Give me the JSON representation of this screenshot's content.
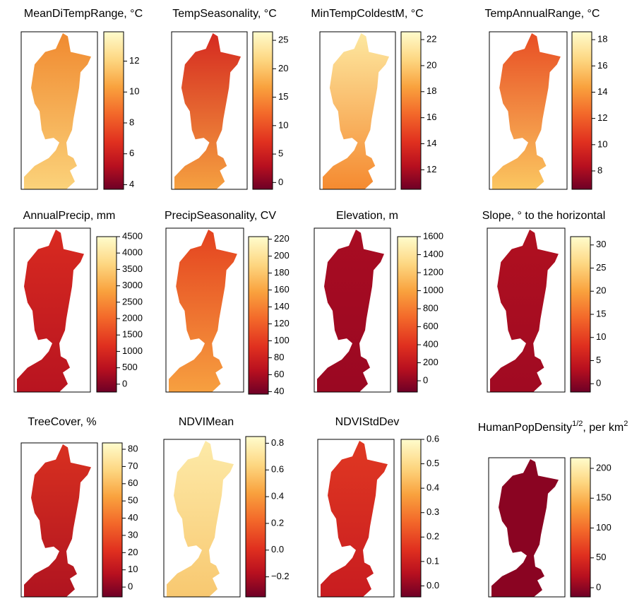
{
  "chart_data": [
    {
      "type": "raster-map",
      "title": "MeanDiTempRange, °C",
      "ylim": [
        3.7,
        13.9
      ],
      "yticks": [
        4,
        6,
        8,
        10,
        12
      ],
      "colors": [
        "#f08a30",
        "#fbd27a"
      ]
    },
    {
      "type": "raster-map",
      "title": "TempSeasonality, °C",
      "ylim": [
        -1.2,
        26.5
      ],
      "yticks": [
        0,
        5,
        10,
        15,
        20,
        25
      ],
      "colors": [
        "#d52a20",
        "#f5a040"
      ]
    },
    {
      "type": "raster-map",
      "title": "MinTempColdestM, °C",
      "ylim": [
        10.5,
        22.6
      ],
      "yticks": [
        12,
        14,
        16,
        18,
        20,
        22
      ],
      "colors": [
        "#fde8a0",
        "#f58a30"
      ]
    },
    {
      "type": "raster-map",
      "title": "TempAnnualRange, °C",
      "ylim": [
        6.6,
        18.6
      ],
      "yticks": [
        8,
        10,
        12,
        14,
        16,
        18
      ],
      "colors": [
        "#e84e24",
        "#fbc660"
      ]
    },
    {
      "type": "raster-map",
      "title": "AnnualPrecip, mm",
      "ylim": [
        -240,
        4500
      ],
      "yticks": [
        0,
        500,
        1000,
        1500,
        2000,
        2500,
        3000,
        3500,
        4000,
        4500
      ],
      "colors": [
        "#d82a20",
        "#b81420"
      ]
    },
    {
      "type": "raster-map",
      "title": "PrecipSeasonality, CV",
      "ylim": [
        37,
        223
      ],
      "yticks": [
        40,
        60,
        80,
        100,
        120,
        140,
        160,
        180,
        200,
        220
      ],
      "colors": [
        "#e4421f",
        "#f7a040"
      ]
    },
    {
      "type": "raster-map",
      "title": "Elevation, m",
      "ylim": [
        -125,
        1600
      ],
      "yticks": [
        0,
        200,
        400,
        600,
        800,
        1000,
        1200,
        1400,
        1600
      ],
      "colors": [
        "#a80c22",
        "#9a0822"
      ]
    },
    {
      "type": "raster-map",
      "title": "Slope, ° to the horizontal",
      "ylim": [
        -1.8,
        31.8
      ],
      "yticks": [
        0,
        5,
        10,
        15,
        20,
        25,
        30
      ],
      "colors": [
        "#b01020",
        "#a00a22"
      ]
    },
    {
      "type": "raster-map",
      "title": "TreeCover,  %",
      "ylim": [
        -5.7,
        83.7
      ],
      "yticks": [
        0,
        10,
        20,
        30,
        40,
        50,
        60,
        70,
        80
      ],
      "colors": [
        "#d83020",
        "#b01420"
      ]
    },
    {
      "type": "raster-map",
      "title": "NDVIMean",
      "ylim": [
        -0.35,
        0.85
      ],
      "yticks": [
        {
          "value": -0.2,
          "label": "−0.2"
        },
        {
          "value": 0,
          "label": "0.0"
        },
        0.2,
        0.4,
        0.6,
        0.8
      ],
      "colors": [
        "#fdeaa8",
        "#f8c870"
      ]
    },
    {
      "type": "raster-map",
      "title": "NDVIStdDev",
      "ylim": [
        -0.045,
        0.6
      ],
      "yticks": [
        {
          "value": 0,
          "label": "0.0"
        },
        0.1,
        0.2,
        0.3,
        0.4,
        0.5,
        0.6
      ],
      "colors": [
        "#e03822",
        "#c81c20"
      ]
    },
    {
      "type": "raster-map",
      "title_parts": [
        {
          "text": "HumanPopDensity"
        },
        {
          "text": "1/2",
          "sup": true
        },
        {
          "text": ", per km"
        },
        {
          "text": "2",
          "sup": true
        }
      ],
      "ylim": [
        -15.4,
        217.8
      ],
      "yticks": [
        0,
        50,
        100,
        150,
        200
      ],
      "colors": [
        "#8a0422",
        "#8a0422"
      ]
    }
  ]
}
